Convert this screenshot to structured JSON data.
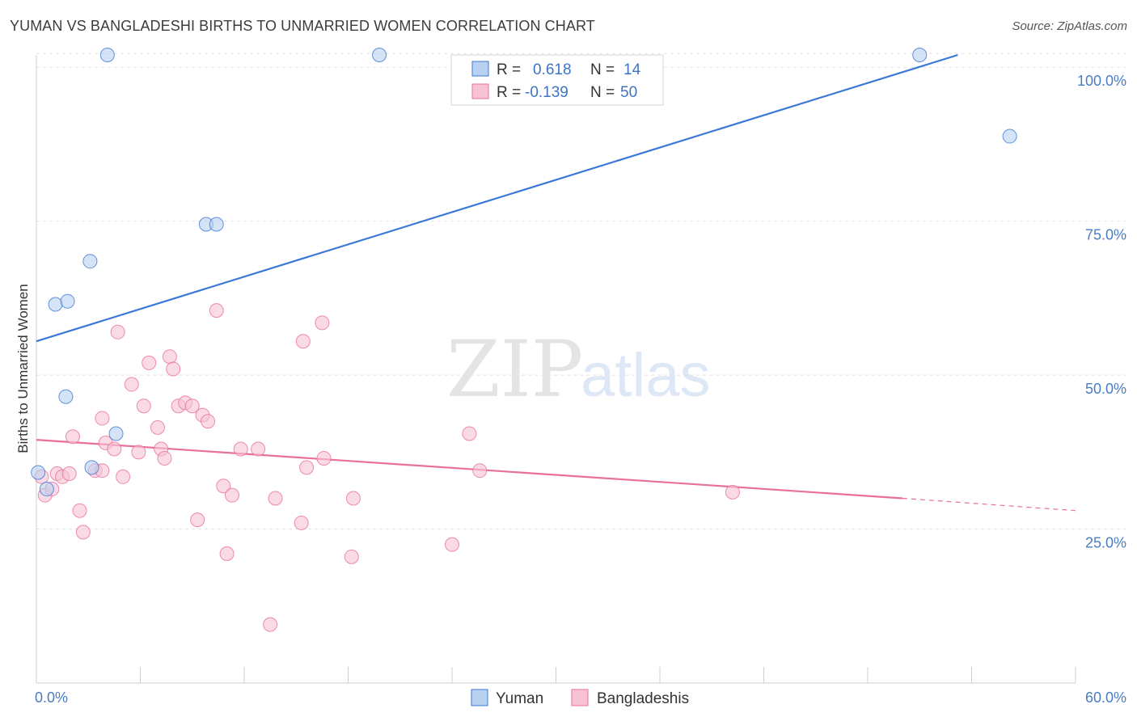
{
  "title": "YUMAN VS BANGLADESHI BIRTHS TO UNMARRIED WOMEN CORRELATION CHART",
  "source": "Source: ZipAtlas.com",
  "watermark": {
    "zip": "ZIP",
    "atlas": "atlas"
  },
  "colors": {
    "blue": "#3c78d8",
    "blue_fill": "#b9d1f0",
    "pink": "#e8709a",
    "pink_fill": "#f7c3d3"
  },
  "legend": {
    "row1": {
      "r_label": "R =",
      "r_value": "0.618",
      "n_label": "N =",
      "n_value": "14"
    },
    "row2": {
      "r_label": "R =",
      "r_value": "-0.139",
      "n_label": "N =",
      "n_value": "50"
    }
  },
  "chart_data": {
    "type": "scatter",
    "title": "YUMAN VS BANGLADESHI BIRTHS TO UNMARRIED WOMEN CORRELATION CHART",
    "xlabel": "",
    "ylabel": "Births to Unmarried Women",
    "xlim": [
      0,
      60
    ],
    "ylim": [
      0,
      102
    ],
    "x_tick_labels": [
      "0.0%",
      "60.0%"
    ],
    "y_ticks": [
      25,
      50,
      75,
      100
    ],
    "y_tick_labels": [
      "25.0%",
      "50.0%",
      "75.0%",
      "100.0%"
    ],
    "grid": true,
    "legend_position": "top-center",
    "series": [
      {
        "name": "Yuman",
        "color": "#3c78d8",
        "points": [
          [
            0.1,
            34.2
          ],
          [
            0.6,
            31.5
          ],
          [
            1.1,
            61.5
          ],
          [
            1.8,
            62.0
          ],
          [
            1.7,
            46.5
          ],
          [
            3.1,
            68.5
          ],
          [
            3.2,
            35.0
          ],
          [
            4.6,
            40.5
          ],
          [
            4.1,
            102.0
          ],
          [
            9.8,
            74.5
          ],
          [
            10.4,
            74.5
          ],
          [
            19.8,
            102.0
          ],
          [
            51.0,
            102.0
          ],
          [
            56.2,
            88.8
          ]
        ],
        "trend": {
          "x0": 0,
          "y0": 55.5,
          "x1": 53.2,
          "y1": 102
        }
      },
      {
        "name": "Bangladeshis",
        "color": "#e8709a",
        "points": [
          [
            0.3,
            33.5
          ],
          [
            0.5,
            30.5
          ],
          [
            0.9,
            31.5
          ],
          [
            1.2,
            34.0
          ],
          [
            1.5,
            33.5
          ],
          [
            1.9,
            34.0
          ],
          [
            2.1,
            40.0
          ],
          [
            2.5,
            28.0
          ],
          [
            2.7,
            24.5
          ],
          [
            3.4,
            34.5
          ],
          [
            3.8,
            34.5
          ],
          [
            3.8,
            43.0
          ],
          [
            4.0,
            39.0
          ],
          [
            4.5,
            38.0
          ],
          [
            4.7,
            57.0
          ],
          [
            5.0,
            33.5
          ],
          [
            5.5,
            48.5
          ],
          [
            5.9,
            37.5
          ],
          [
            6.2,
            45.0
          ],
          [
            6.5,
            52.0
          ],
          [
            7.0,
            41.5
          ],
          [
            7.2,
            38.0
          ],
          [
            7.4,
            36.5
          ],
          [
            7.7,
            53.0
          ],
          [
            7.9,
            51.0
          ],
          [
            8.2,
            45.0
          ],
          [
            8.6,
            45.5
          ],
          [
            9.0,
            45.0
          ],
          [
            9.3,
            26.5
          ],
          [
            9.6,
            43.5
          ],
          [
            9.9,
            42.5
          ],
          [
            10.4,
            60.5
          ],
          [
            10.8,
            32.0
          ],
          [
            11.0,
            21.0
          ],
          [
            11.3,
            30.5
          ],
          [
            11.8,
            38.0
          ],
          [
            12.8,
            38.0
          ],
          [
            13.5,
            9.5
          ],
          [
            13.8,
            30.0
          ],
          [
            15.3,
            26.0
          ],
          [
            15.4,
            55.5
          ],
          [
            15.6,
            35.0
          ],
          [
            16.5,
            58.5
          ],
          [
            16.6,
            36.5
          ],
          [
            18.2,
            20.5
          ],
          [
            18.3,
            30.0
          ],
          [
            24.0,
            22.5
          ],
          [
            25.0,
            40.5
          ],
          [
            25.6,
            34.5
          ],
          [
            40.2,
            31.0
          ]
        ],
        "trend": {
          "x0": 0,
          "y0": 39.5,
          "x1": 50.0,
          "y1": 30.0,
          "dash_x1": 60.0,
          "dash_y1": 28.0
        }
      }
    ]
  }
}
